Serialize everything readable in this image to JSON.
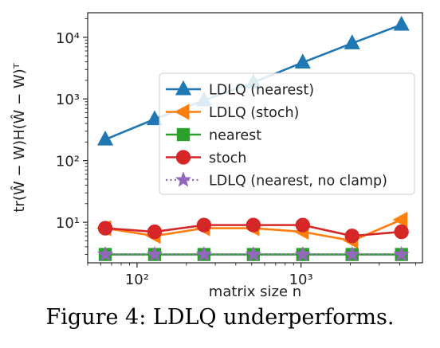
{
  "caption": "Figure 4: LDLQ underperforms.",
  "chart_data": {
    "type": "line",
    "xlabel": "matrix size n",
    "ylabel": "tr(Ŵ − W)H(Ŵ − W)ᵀ",
    "x_scale": "log",
    "y_scale": "log",
    "xlim": [
      50,
      5500
    ],
    "ylim": [
      2.2,
      25000
    ],
    "x_ticks": [
      {
        "value": 100,
        "label": "10²"
      },
      {
        "value": 1000,
        "label": "10³"
      }
    ],
    "y_ticks": [
      {
        "value": 10,
        "label": "10¹"
      },
      {
        "value": 100,
        "label": "10²"
      },
      {
        "value": 1000,
        "label": "10³"
      },
      {
        "value": 10000,
        "label": "10⁴"
      }
    ],
    "x": [
      64,
      128,
      256,
      512,
      1024,
      2048,
      4096
    ],
    "series": [
      {
        "name": "LDLQ (nearest)",
        "color": "#1f77b4",
        "marker": "triangle-up",
        "linestyle": "solid",
        "values": [
          220,
          470,
          950,
          1850,
          3900,
          8000,
          16000
        ]
      },
      {
        "name": "LDLQ (stoch)",
        "color": "#ff7f0e",
        "marker": "triangle-left",
        "linestyle": "solid",
        "values": [
          8,
          6,
          8,
          8,
          7,
          5,
          11
        ]
      },
      {
        "name": "nearest",
        "color": "#2ca02c",
        "marker": "square",
        "linestyle": "solid",
        "values": [
          3,
          3,
          3,
          3,
          3,
          3,
          3
        ]
      },
      {
        "name": "stoch",
        "color": "#d62728",
        "marker": "circle",
        "linestyle": "solid",
        "values": [
          8,
          7,
          9,
          9,
          9,
          6,
          7
        ]
      },
      {
        "name": "LDLQ (nearest, no clamp)",
        "color": "#9467bd",
        "marker": "star",
        "linestyle": "dotted",
        "values": [
          3,
          3,
          3,
          3,
          3,
          3,
          3
        ]
      }
    ],
    "legend_position": "center-right",
    "grid": false
  }
}
